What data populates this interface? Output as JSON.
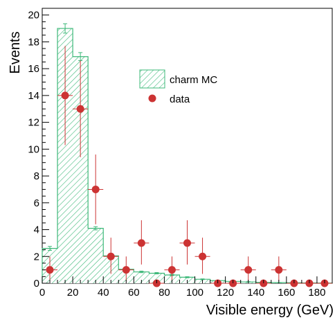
{
  "chart_data": {
    "type": "histogram",
    "xlabel": "Visible energy (GeV)",
    "ylabel": "Events",
    "xlim": [
      0,
      190
    ],
    "ylim": [
      0,
      20.5
    ],
    "x_ticks": [
      0,
      20,
      40,
      60,
      80,
      100,
      120,
      140,
      160,
      180
    ],
    "y_ticks": [
      0,
      2,
      4,
      6,
      8,
      10,
      12,
      14,
      16,
      18,
      20
    ],
    "grid": false,
    "legend_position": "upper-center",
    "bin_edges": [
      0,
      10,
      20,
      30,
      40,
      50,
      60,
      70,
      80,
      90,
      100,
      110,
      120,
      130,
      140,
      150,
      160,
      170,
      180,
      190
    ],
    "series": [
      {
        "name": "charm MC",
        "kind": "hatched-histogram",
        "color": "#3cb878",
        "values": [
          2.6,
          19.0,
          16.9,
          4.1,
          2.05,
          1.05,
          0.85,
          0.75,
          0.62,
          0.45,
          0.3,
          0.2,
          0.14,
          0.1,
          0.07,
          0.05,
          0.04,
          0.03,
          0.02
        ],
        "errors": [
          0.15,
          0.35,
          0.3,
          0.12,
          0.1,
          0.07,
          0.06,
          0.05,
          0.05,
          0.04,
          0.03,
          0.03,
          0.02,
          0.02,
          0.02,
          0.01,
          0.01,
          0.01,
          0.01
        ]
      },
      {
        "name": "data",
        "kind": "points-with-errors",
        "color": "#cc3333",
        "x": [
          5,
          15,
          25,
          35,
          45,
          55,
          65,
          75,
          85,
          95,
          105,
          115,
          125,
          135,
          145,
          155,
          165,
          175,
          185
        ],
        "y": [
          1,
          14,
          13,
          7,
          2,
          1,
          3,
          0,
          1,
          3,
          2,
          0,
          0,
          1,
          0,
          1,
          0,
          0,
          0
        ],
        "yerr_low": [
          0.83,
          3.7,
          3.6,
          2.6,
          1.3,
          0.83,
          1.6,
          0,
          0.83,
          1.6,
          1.3,
          0,
          0,
          0.83,
          0,
          0.83,
          0,
          0,
          0
        ],
        "yerr_high": [
          1,
          3.7,
          3.6,
          2.6,
          1.4,
          1,
          1.7,
          0,
          1,
          1.7,
          1.4,
          0,
          0,
          1,
          0,
          1,
          0,
          0,
          0
        ]
      }
    ]
  }
}
